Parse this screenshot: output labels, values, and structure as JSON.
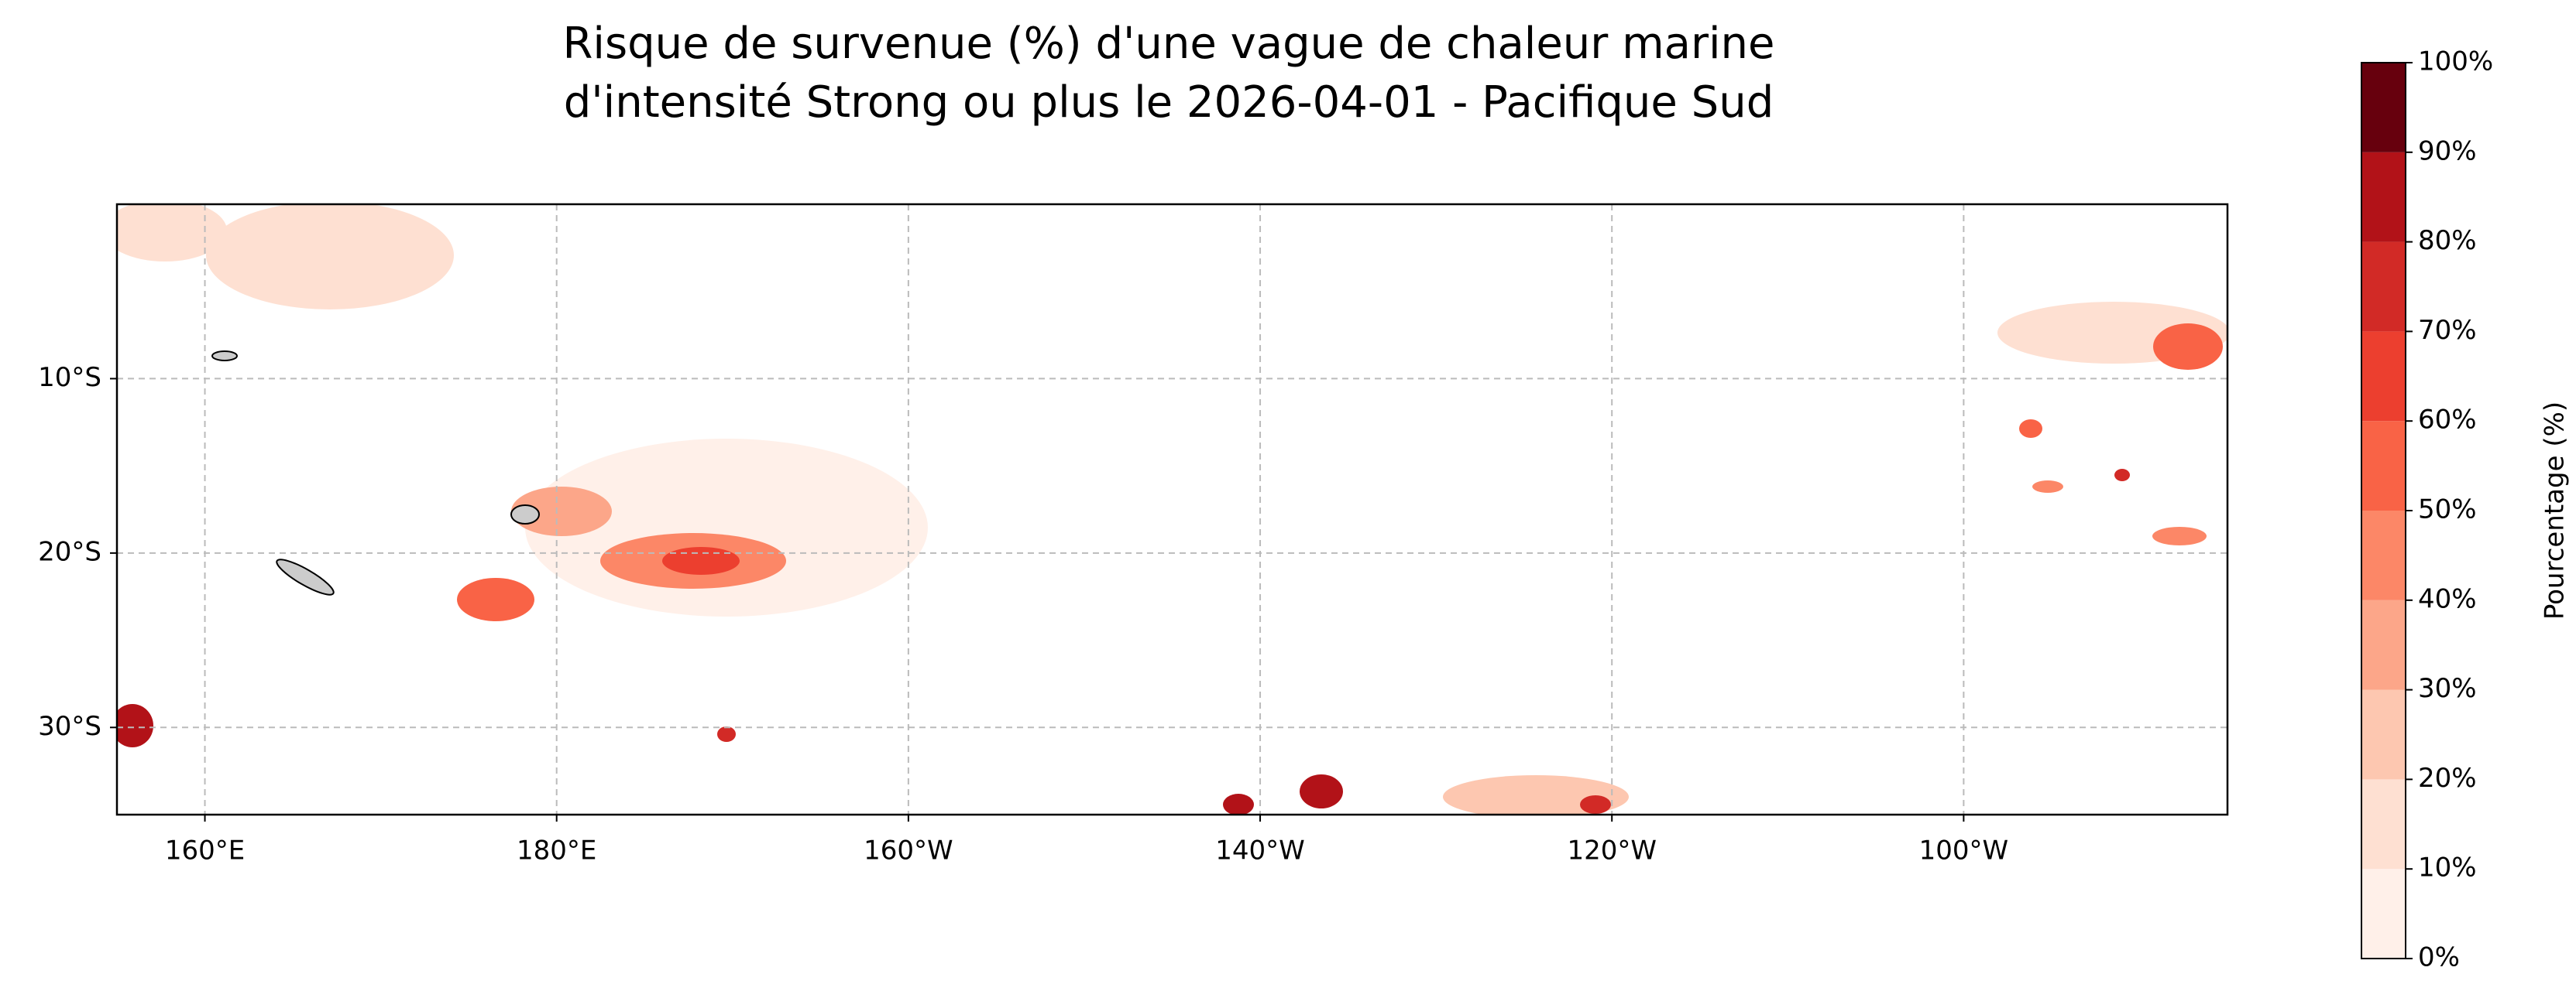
{
  "map": {
    "title_line1": "Risque de survenue (%) d'une vague de chaleur marine",
    "title_line2": "d'intensité Strong ou plus le 2026-04-01 - Pacifique Sud",
    "xlim": [
      155,
      275
    ],
    "ylim": [
      -35,
      0
    ],
    "xticks": [
      {
        "value": 160,
        "label": "160°E"
      },
      {
        "value": 180,
        "label": "180°E"
      },
      {
        "value": 200,
        "label": "160°W"
      },
      {
        "value": 220,
        "label": "140°W"
      },
      {
        "value": 240,
        "label": "120°W"
      },
      {
        "value": 260,
        "label": "100°W"
      }
    ],
    "yticks": [
      {
        "value": -10,
        "label": "10°S"
      },
      {
        "value": -20,
        "label": "20°S"
      },
      {
        "value": -30,
        "label": "30°S"
      }
    ],
    "grid": true,
    "colorbar": {
      "label": "Pourcentage (%)",
      "ticks": [
        {
          "value": 0,
          "label": "0%"
        },
        {
          "value": 10,
          "label": "10%"
        },
        {
          "value": 20,
          "label": "20%"
        },
        {
          "value": 30,
          "label": "30%"
        },
        {
          "value": 40,
          "label": "40%"
        },
        {
          "value": 50,
          "label": "50%"
        },
        {
          "value": 60,
          "label": "60%"
        },
        {
          "value": 70,
          "label": "70%"
        },
        {
          "value": 80,
          "label": "80%"
        },
        {
          "value": 90,
          "label": "90%"
        },
        {
          "value": 100,
          "label": "100%"
        }
      ],
      "colors": [
        "#fff0e9",
        "#fee0d2",
        "#fdc7b0",
        "#fca689",
        "#fc8767",
        "#f96346",
        "#ec3f2f",
        "#d22a26",
        "#b21218",
        "#67000d"
      ]
    }
  }
}
